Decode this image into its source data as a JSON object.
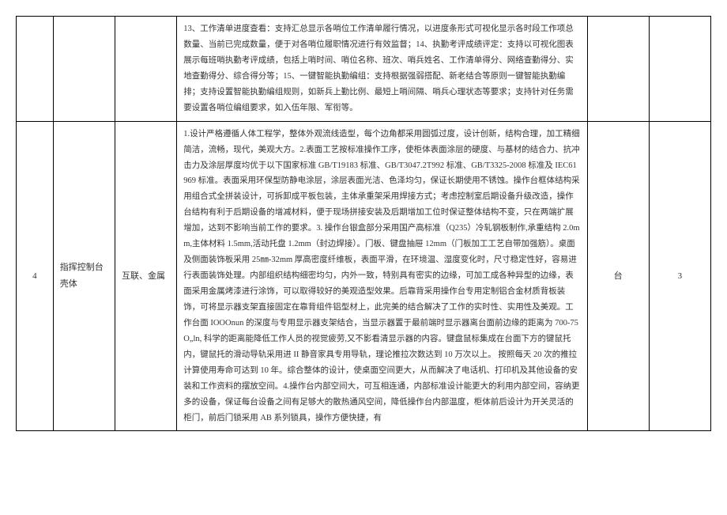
{
  "rows": [
    {
      "seq": "",
      "name": "",
      "brand": "",
      "desc": "13、工作清单进度查看：支持汇总显示各哨位工作清单履行情况，以进度条形式可视化显示各时段工作项总数量、当前已完成数量，便于对各哨位履职情况进行有效监督；14、执勤考评成绩评定：支持以可视化图表展示每班哨执勤考评成绩，包括上哨时间、哨位名称、班次、哨兵姓名、工作清单得分、网络查勤得分、实地查勤得分、综合得分等；15、一键智能执勤编组：支持根据强弱搭配、新老结合等原则一键智能执勤编排；支持设置智能执勤编组规则，如新兵上勤比例、最短上哨间隔、哨兵心理状态等要求；支持针对任务需要设置各哨位编组要求，如入伍年限、军衔等。",
      "unit": "",
      "qty": ""
    },
    {
      "seq": "4",
      "name": "指挥控制台壳体",
      "brand": "互联、金属",
      "desc": "1.设计严格遵循人体工程学，整体外观流线造型，每个边角都采用圆弧过度，设计创新，结构合理，加工精细简洁，流畅，现代，美观大方。2.表面工艺按标准操作工序，使柜体表面涂层的硬度、与基材的结合力、抗冲击力及涂层厚度均优于以下国家标准 GB/T19183 标准、GB/T3047.2T992 标准、GB/T3325-2008 标准及 IEC61969 标准。表面采用环保型防静电涂层，涂层表面光洁、色泽均匀，保证长期使用不锈蚀。操作台框体结构采用组合式全拼装设计，可拆卸成平板包装，主体承重架采用焊接方式；考虑控制室后期设备升级改造，操作台结构有利于后期设备的增减材料，便于现场拼接安装及后期增加工位时保证整体结构不变，只在两端扩展增加，达到不影响当前工作的要求。3. 操作台银盒部分采用国产高标准（Q235）冷轧钢板制作,承重结构 2.0mm,主体材料 1.5mm,活动托盘 1.2mm（封边焊接）。门板、键盘抽屉 12mm（门板加工工艺自带加强筋）。桌面及侧面装饰板采用 25㎜-32mm 厚高密度纤维板，表面平滑，在环境温、湿度变化时，尺寸稳定性好，容易进行表面装饰处理。内部组织结构细密均匀，内外一致，特别具有密实的边缘，可加工成各种异型的边缘，表面采用金属烤漆进行涂饰，可以取得较好的美观造型效果。后靠背采用操作台专用定制铝合金材质背板装饰，可将显示器支架直接固定在靠背组件铝型材上，此完美的结合解决了工作的实时性、实用性及美观。工作台面 IOOOnun 的深度与专用显示器支架结合，当显示器置于最前端时显示器离台面前边缘的距离为 700-75O„ln, 科学的距离能降低工作人员的视觉疲劳,又不影看清显示器的内容。键盘鼠标集成在台面下方的键鼠托内，键鼠托的滑动导轨采用进 II 静音家具专用导轨，理论推拉次数达到 10 万次以上。\n按照每天 20 次的推拉计算使用寿命可达到 10 年。综合整体的设计，使桌面空间更大，从而解决了电话机、打印机及其他设备的安装和工作资料的摆放空间。4.操作台内部空间大，可互相连通，内部标准设计能更大的利用内部空间，容纳更多的设备，保证每台设备之间有足够大的散热通风空间，降低操作台内部温度，柜体前后设计为开关灵活的柜门，前后门锁采用 AB 系列锁具，操作方便快捷，有",
      "unit": "台",
      "qty": "3"
    }
  ]
}
